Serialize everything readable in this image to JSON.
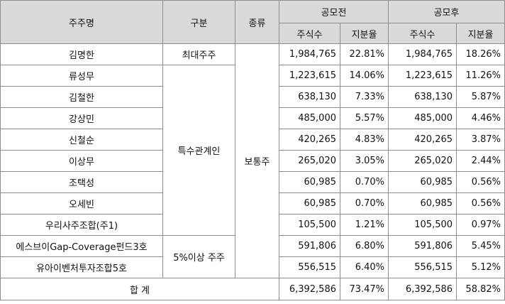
{
  "header": {
    "holder": "주주명",
    "category": "구분",
    "type": "종류",
    "before": "공모전",
    "after": "공모후",
    "shares": "주식수",
    "ratio": "지분율"
  },
  "groups": {
    "major": "최대주주",
    "related": "특수관계인",
    "over5": "5%이상 주주"
  },
  "stock_type": "보통주",
  "rows": [
    {
      "name": "김명한",
      "before_shares": "1,984,765",
      "before_ratio": "22.81%",
      "after_shares": "1,984,765",
      "after_ratio": "18.26%"
    },
    {
      "name": "류성무",
      "before_shares": "1,223,615",
      "before_ratio": "14.06%",
      "after_shares": "1,223,615",
      "after_ratio": "11.26%"
    },
    {
      "name": "김철한",
      "before_shares": "638,130",
      "before_ratio": "7.33%",
      "after_shares": "638,130",
      "after_ratio": "5.87%"
    },
    {
      "name": "강상민",
      "before_shares": "485,000",
      "before_ratio": "5.57%",
      "after_shares": "485,000",
      "after_ratio": "4.46%"
    },
    {
      "name": "신철순",
      "before_shares": "420,265",
      "before_ratio": "4.83%",
      "after_shares": "420,265",
      "after_ratio": "3.87%"
    },
    {
      "name": "이상무",
      "before_shares": "265,020",
      "before_ratio": "3.05%",
      "after_shares": "265,020",
      "after_ratio": "2.44%"
    },
    {
      "name": "조택성",
      "before_shares": "60,985",
      "before_ratio": "0.70%",
      "after_shares": "60,985",
      "after_ratio": "0.56%"
    },
    {
      "name": "오세빈",
      "before_shares": "60,985",
      "before_ratio": "0.70%",
      "after_shares": "60,985",
      "after_ratio": "0.56%"
    },
    {
      "name": "우리사주조합(주1)",
      "before_shares": "105,500",
      "before_ratio": "1.21%",
      "after_shares": "105,500",
      "after_ratio": "0.97%"
    },
    {
      "name": "에스브이Gap-Coverage펀드3호",
      "before_shares": "591,806",
      "before_ratio": "6.80%",
      "after_shares": "591,806",
      "after_ratio": "5.45%"
    },
    {
      "name": "유아이벤처투자조합5호",
      "before_shares": "556,515",
      "before_ratio": "6.40%",
      "after_shares": "556,515",
      "after_ratio": "5.12%"
    }
  ],
  "total": {
    "label": "합 계",
    "before_shares": "6,392,586",
    "before_ratio": "73.47%",
    "after_shares": "6,392,586",
    "after_ratio": "58.82%"
  },
  "colors": {
    "header_bg": "#d9d9d9",
    "border": "#8c8c8c"
  }
}
